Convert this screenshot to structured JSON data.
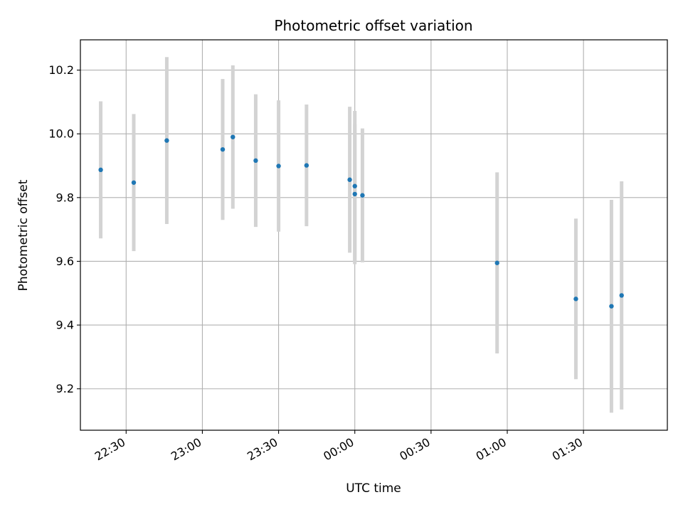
{
  "chart_data": {
    "type": "scatter",
    "title": "Photometric offset variation",
    "xlabel": "UTC time",
    "ylabel": "Photometric offset",
    "x_ticks": [
      "22:30",
      "23:00",
      "23:30",
      "00:00",
      "00:30",
      "01:00",
      "01:30"
    ],
    "y_ticks": [
      "9.2",
      "9.4",
      "9.6",
      "9.8",
      "10.0",
      "10.2"
    ],
    "xlim": [
      "22:12",
      "02:03"
    ],
    "ylim": [
      9.07,
      10.295
    ],
    "grid": true,
    "colors": {
      "point": "#1f77b4",
      "errorbar": "#d3d3d3",
      "grid": "#b0b0b0"
    },
    "series": [
      {
        "points": [
          {
            "time": "22:20",
            "y": 9.887,
            "err": 0.215
          },
          {
            "time": "22:33",
            "y": 9.847,
            "err": 0.215
          },
          {
            "time": "22:46",
            "y": 9.979,
            "err": 0.262
          },
          {
            "time": "23:08",
            "y": 9.951,
            "err": 0.221
          },
          {
            "time": "23:12",
            "y": 9.99,
            "err": 0.225
          },
          {
            "time": "23:21",
            "y": 9.916,
            "err": 0.208
          },
          {
            "time": "23:30",
            "y": 9.899,
            "err": 0.206
          },
          {
            "time": "23:41",
            "y": 9.901,
            "err": 0.191
          },
          {
            "time": "23:58",
            "y": 9.856,
            "err": 0.229
          },
          {
            "time": "00:00",
            "y": 9.811,
            "err": 0.22
          },
          {
            "time": "00:00",
            "y": 9.836,
            "err": 0.236
          },
          {
            "time": "00:03",
            "y": 9.807,
            "err": 0.21
          },
          {
            "time": "00:56",
            "y": 9.595,
            "err": 0.284
          },
          {
            "time": "01:27",
            "y": 9.482,
            "err": 0.252
          },
          {
            "time": "01:41",
            "y": 9.459,
            "err": 0.334
          },
          {
            "time": "01:45",
            "y": 9.493,
            "err": 0.358
          }
        ]
      }
    ]
  }
}
